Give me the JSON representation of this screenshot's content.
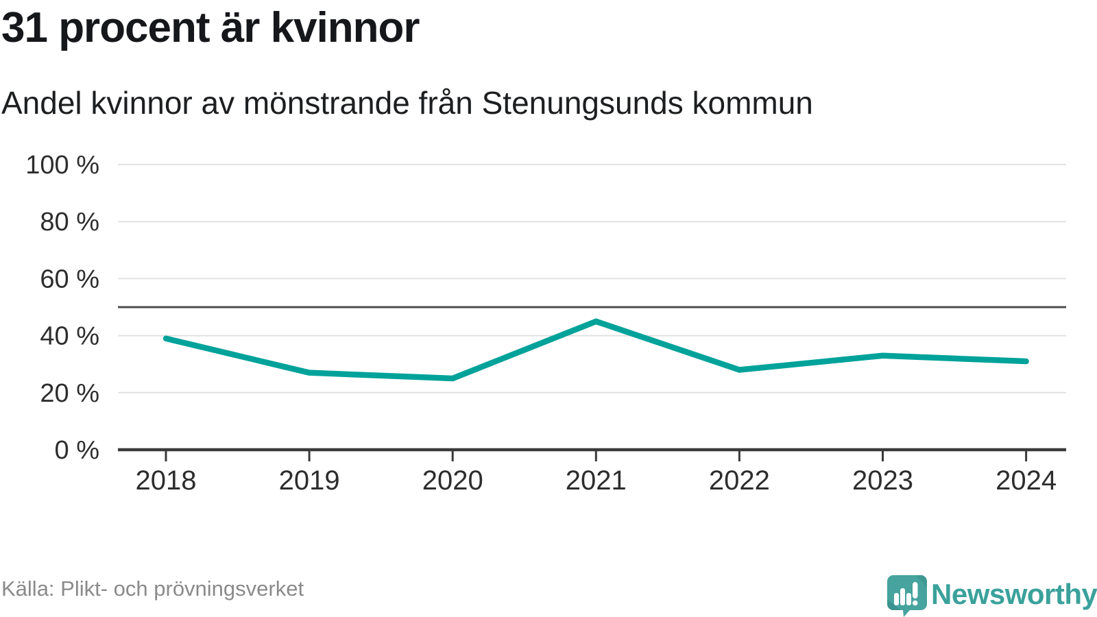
{
  "header": {
    "title": "31 procent är kvinnor",
    "subtitle": "Andel kvinnor av mönstrande från Stenungsunds kommun"
  },
  "chart_data": {
    "type": "line",
    "title": "31 procent är kvinnor",
    "subtitle": "Andel kvinnor av mönstrande från Stenungsunds kommun",
    "categories": [
      "2018",
      "2019",
      "2020",
      "2021",
      "2022",
      "2023",
      "2024"
    ],
    "values": [
      39,
      27,
      25,
      45,
      28,
      33,
      31
    ],
    "unit": "%",
    "ylim": [
      0,
      100
    ],
    "yticks": [
      0,
      20,
      40,
      60,
      80,
      100
    ],
    "ytick_labels": [
      "0 %",
      "20 %",
      "40 %",
      "60 %",
      "80 %",
      "100 %"
    ],
    "reference_line": 50,
    "grid": true,
    "legend": "none",
    "line_color": "#00a29a",
    "grid_color": "#e1e1e1",
    "reference_line_color": "#4d4d4d",
    "axis_color": "#3a3a3a",
    "tick_label_color": "#2d2d2d"
  },
  "footer": {
    "source": "Källa: Plikt- och prövningsverket",
    "brand": "Newsworthy"
  },
  "colors": {
    "title": "#15171a",
    "subtitle": "#1c1e20",
    "source": "#8a8a8a",
    "brand_teal": "#3aa19b",
    "logo_body": "#46a39e",
    "logo_shadow": "#38908b"
  }
}
